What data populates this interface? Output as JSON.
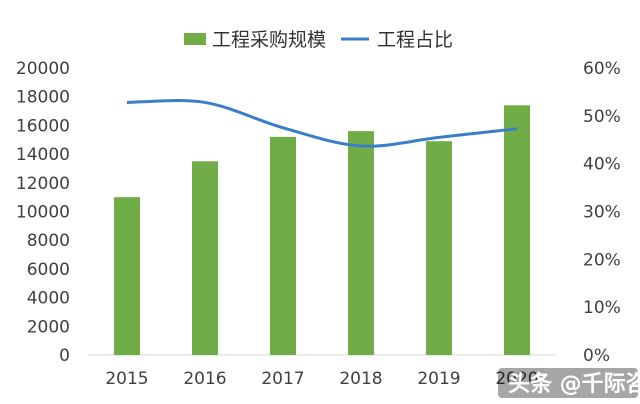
{
  "chart_data": {
    "type": "bar",
    "categories": [
      "2015",
      "2016",
      "2017",
      "2018",
      "2019",
      "2020"
    ],
    "series": [
      {
        "name": "工程采购规模",
        "type": "bar",
        "axis": "left",
        "color": "#70AD47",
        "values": [
          11000,
          13500,
          15200,
          15600,
          14900,
          17400
        ]
      },
      {
        "name": "工程占比",
        "type": "line",
        "axis": "right",
        "color": "#3A7EC8",
        "values": [
          52.8,
          52.8,
          47.5,
          43.7,
          45.5,
          47.3
        ]
      }
    ],
    "y_left": {
      "ylim": [
        0,
        20000
      ],
      "ticks": [
        "0",
        "2000",
        "4000",
        "6000",
        "8000",
        "10000",
        "12000",
        "14000",
        "16000",
        "18000",
        "20000"
      ]
    },
    "y_right": {
      "ylim": [
        0,
        60
      ],
      "unit": "%",
      "ticks": [
        "0%",
        "10%",
        "20%",
        "30%",
        "40%",
        "50%",
        "60%"
      ]
    },
    "grid": false,
    "legend": "top-center"
  },
  "watermark": {
    "account": "头条 @千际咨询"
  }
}
